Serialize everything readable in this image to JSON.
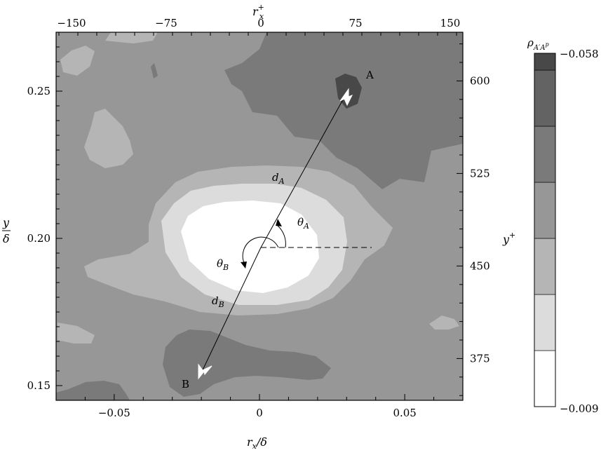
{
  "chart_data": {
    "type": "heatmap",
    "title": "",
    "xlabel": "r_x/δ",
    "x2label": "r_x^+",
    "ylabel": "y/δ",
    "y2label": "y^+",
    "xlim": [
      -0.07,
      0.07
    ],
    "ylim": [
      0.145,
      0.27
    ],
    "x_ticks": [
      -0.05,
      0,
      0.05
    ],
    "x_tick_labels": [
      "−0.05",
      "0",
      "0.05"
    ],
    "y_ticks": [
      0.15,
      0.2,
      0.25
    ],
    "y_tick_labels": [
      "0.15",
      "0.20",
      "0.25"
    ],
    "x2_ticks": [
      -150,
      -75,
      0,
      75,
      150
    ],
    "x2_tick_labels": [
      "−150",
      "−75",
      "0",
      "75",
      "150"
    ],
    "y2_ticks": [
      375,
      450,
      525,
      600
    ],
    "y2_tick_labels": [
      "375",
      "450",
      "525",
      "600"
    ],
    "colorbar": {
      "label": "ρ_{A′A^p}",
      "min_label": "−0.009",
      "max_label": "−0.058",
      "levels": 6,
      "colors": [
        "#ffffff",
        "#dcdcdc",
        "#b5b5b5",
        "#979797",
        "#7a7a7a",
        "#636363",
        "#484848"
      ]
    },
    "points": [
      {
        "name": "A",
        "x": 0.03,
        "y": 0.256
      },
      {
        "name": "B",
        "x": -0.021,
        "y": 0.153
      }
    ],
    "annotations": {
      "origin": [
        0,
        0.2
      ],
      "d_A": "d_A",
      "d_B": "d_B",
      "theta_A": "θ_A",
      "theta_B": "θ_B"
    },
    "grid": false
  }
}
